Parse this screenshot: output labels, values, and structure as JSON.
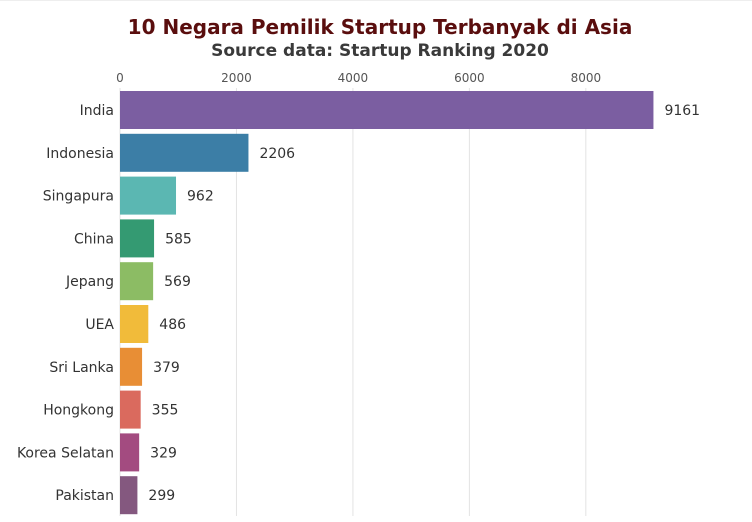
{
  "chart_data": {
    "type": "bar",
    "orientation": "horizontal",
    "title": "10 Negara Pemilik Startup Terbanyak di Asia",
    "subtitle": "Source data: Startup Ranking 2020",
    "xlabel": "",
    "ylabel": "",
    "xlim": [
      0,
      9161
    ],
    "xticks": [
      0,
      2000,
      4000,
      6000,
      8000
    ],
    "grid": true,
    "legend": "none",
    "categories": [
      "India",
      "Indonesia",
      "Singapura",
      "China",
      "Jepang",
      "UEA",
      "Sri Lanka",
      "Hongkong",
      "Korea Selatan",
      "Pakistan"
    ],
    "values": [
      9161,
      2206,
      962,
      585,
      569,
      486,
      379,
      355,
      329,
      299
    ],
    "colors": [
      "#7b5ea1",
      "#3c7ea6",
      "#5bb7b2",
      "#349a72",
      "#8cbc64",
      "#f1bb3a",
      "#e88e35",
      "#da6a5e",
      "#a34b80",
      "#84587f"
    ]
  }
}
